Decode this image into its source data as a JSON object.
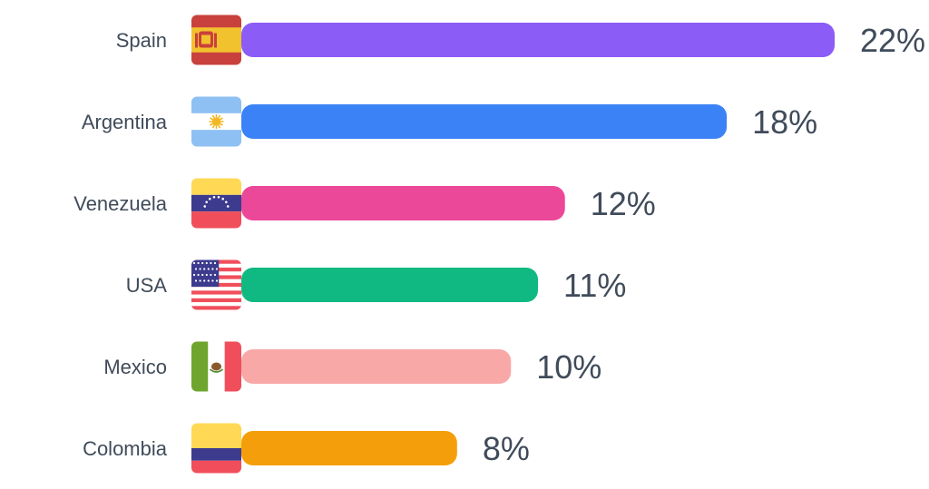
{
  "chart_data": {
    "type": "bar",
    "orientation": "horizontal",
    "categories": [
      "Spain",
      "Argentina",
      "Venezuela",
      "USA",
      "Mexico",
      "Colombia"
    ],
    "values": [
      22,
      18,
      12,
      11,
      10,
      8
    ],
    "value_labels": [
      "22%",
      "18%",
      "12%",
      "11%",
      "10%",
      "8%"
    ],
    "bar_colors": [
      "#8b5cf6",
      "#3b82f6",
      "#ec4899",
      "#10b981",
      "#f9a8a8",
      "#f59e0b"
    ],
    "icons": [
      "spain-flag-icon",
      "argentina-flag-icon",
      "venezuela-flag-icon",
      "usa-flag-icon",
      "mexico-flag-icon",
      "colombia-flag-icon"
    ],
    "xlim": [
      0,
      22
    ],
    "grid": false,
    "legend": "none",
    "title": "",
    "xlabel": "",
    "ylabel": ""
  }
}
